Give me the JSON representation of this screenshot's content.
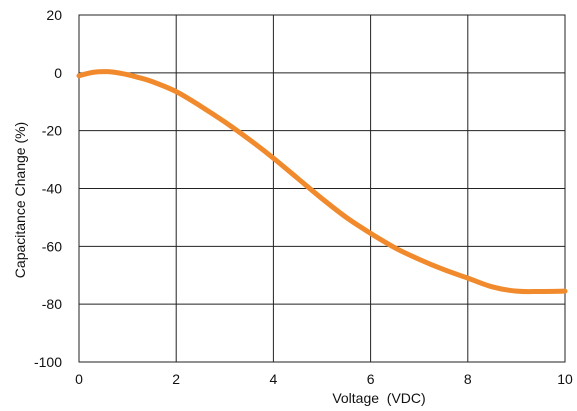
{
  "chart_data": {
    "type": "line",
    "title": "",
    "xlabel": "Voltage  (VDC)",
    "ylabel": "Capacitance Change (%)",
    "xlim": [
      0,
      10
    ],
    "ylim": [
      -100,
      20
    ],
    "xticks": [
      0,
      2,
      4,
      6,
      8,
      10
    ],
    "yticks": [
      20,
      0,
      -20,
      -40,
      -60,
      -80,
      -100
    ],
    "xtick_labels": [
      "0",
      "2",
      "4",
      "6",
      "8",
      "10"
    ],
    "ytick_labels": [
      "20",
      "0",
      "-20",
      "-40",
      "-60",
      "-80",
      "-100"
    ],
    "grid": true,
    "series": [
      {
        "color": "#F08A2C",
        "x": [
          0,
          0.3,
          0.6,
          0.9,
          1.2,
          1.5,
          2.0,
          2.5,
          3.0,
          3.5,
          4.0,
          4.5,
          5.0,
          5.5,
          6.0,
          6.5,
          7.0,
          7.5,
          8.0,
          8.5,
          9.0,
          9.5,
          10.0
        ],
        "y": [
          -1,
          0.2,
          0.4,
          -0.3,
          -1.5,
          -3,
          -6.5,
          -11.5,
          -17,
          -23,
          -29.5,
          -36.5,
          -43.5,
          -50,
          -55.5,
          -60.5,
          -64.5,
          -68,
          -71,
          -74,
          -75.5,
          -75.6,
          -75.5
        ]
      }
    ]
  }
}
